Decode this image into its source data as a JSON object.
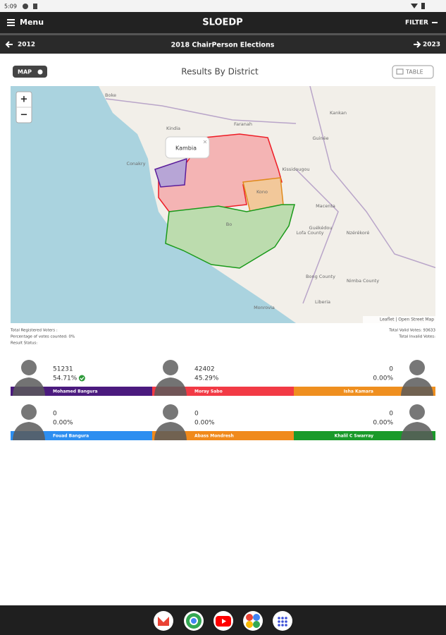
{
  "status_bar": {
    "time": "5:09"
  },
  "app_bar": {
    "menu": "Menu",
    "title": "SLOEDP",
    "filter": "FILTER"
  },
  "nav": {
    "prev": "2012",
    "title": "2018 ChairPerson Elections",
    "next": "2023"
  },
  "toolbar": {
    "map_button": "MAP",
    "title": "Results By District",
    "table_button": "TABLE"
  },
  "map": {
    "zoom_in": "+",
    "zoom_out": "−",
    "popup": "Kambia",
    "popup_close": "×",
    "places": [
      "Boke",
      "Conakry",
      "Kindia",
      "Guinée",
      "Kankan",
      "Kissidougou",
      "Faranah",
      "Guékédou",
      "Macenta",
      "Nzérékoré",
      "Lofa County",
      "Bong County",
      "Nimba County",
      "Liberia",
      "Monrovia",
      "Kono",
      "Bo"
    ],
    "attribution": "Leaflet | Open Street Map"
  },
  "summary": {
    "registered": "Total Registered Voters :",
    "percentage": "Percentage of votes counted: 0%",
    "status": "Result Status:",
    "valid": "Total Valid Votes: 93633",
    "invalid": "Total Invalid Votes:"
  },
  "candidates": [
    {
      "name": "Mohamed Bangura",
      "votes": 51231,
      "percent": "54.71%",
      "color": "#4b1a7e",
      "winner": true
    },
    {
      "name": "Moray Sabo",
      "votes": 42402,
      "percent": "45.29%",
      "color": "#f23a45"
    },
    {
      "name": "Isha Kamara",
      "votes": 0,
      "percent": "0.00%",
      "color": "#ef8f1f"
    },
    {
      "name": "Fouad Bangura",
      "votes": 0,
      "percent": "0.00%",
      "color": "#2d8ef0"
    },
    {
      "name": "Abass Mondresh",
      "votes": 0,
      "percent": "0.00%",
      "color": "#f08a1c"
    },
    {
      "name": "Khalil C Swarray",
      "votes": 0,
      "percent": "0.00%",
      "color": "#1a9a2a"
    }
  ]
}
